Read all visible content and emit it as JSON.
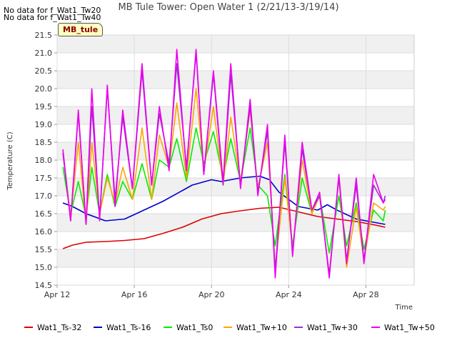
{
  "notes": {
    "nodata_1": "No data for f_Wat1_Tw20",
    "nodata_2": "No data for f_Wat1_Tw40"
  },
  "badge": "MB_tule",
  "chart_data": {
    "type": "line",
    "title": "MB Tule Tower: Open Water 1 (2/21/13-3/19/14)",
    "xlabel": "Time",
    "ylabel": "Temperature (C)",
    "xlim": [
      0,
      18.5
    ],
    "ylim": [
      14.5,
      21.5
    ],
    "x_ticks": [
      {
        "v": 0,
        "label": "Apr 12"
      },
      {
        "v": 4,
        "label": "Apr 16"
      },
      {
        "v": 8,
        "label": "Apr 20"
      },
      {
        "v": 12,
        "label": "Apr 24"
      },
      {
        "v": 16,
        "label": "Apr 28"
      }
    ],
    "y_ticks": [
      14.5,
      15.0,
      15.5,
      16.0,
      16.5,
      17.0,
      17.5,
      18.0,
      18.5,
      19.0,
      19.5,
      20.0,
      20.5,
      21.0,
      21.5
    ],
    "grid": true,
    "legend_position": "bottom",
    "series": [
      {
        "name": "Wat1_Ts-32",
        "color": "#dd0000",
        "x": [
          0.3,
          0.8,
          1.5,
          2.5,
          3.5,
          4.5,
          5.5,
          6.5,
          7.5,
          8.5,
          9.5,
          10.5,
          11.5,
          12.5,
          13.5,
          14.5,
          15.5,
          16.5,
          17.0
        ],
        "y": [
          15.52,
          15.62,
          15.7,
          15.72,
          15.75,
          15.8,
          15.95,
          16.12,
          16.35,
          16.5,
          16.58,
          16.65,
          16.68,
          16.55,
          16.42,
          16.35,
          16.28,
          16.18,
          16.12
        ]
      },
      {
        "name": "Wat1_Ts-16",
        "color": "#0000cc",
        "x": [
          0.3,
          0.8,
          1.5,
          2.5,
          3.5,
          4.5,
          5.5,
          6.5,
          7.0,
          8.0,
          8.5,
          9.5,
          10.5,
          11.0,
          11.5,
          12.5,
          13.5,
          14.0,
          14.5,
          15.5,
          16.5,
          17.0
        ],
        "y": [
          16.8,
          16.7,
          16.5,
          16.3,
          16.35,
          16.6,
          16.85,
          17.15,
          17.3,
          17.45,
          17.4,
          17.5,
          17.55,
          17.45,
          17.1,
          16.7,
          16.6,
          16.75,
          16.6,
          16.35,
          16.25,
          16.2
        ]
      },
      {
        "name": "Wat1_Ts0",
        "color": "#00ee00",
        "x": [
          0.3,
          0.7,
          1.1,
          1.5,
          1.8,
          2.2,
          2.6,
          3.0,
          3.4,
          3.9,
          4.4,
          4.9,
          5.3,
          5.8,
          6.2,
          6.7,
          7.2,
          7.6,
          8.1,
          8.6,
          9.0,
          9.5,
          10.0,
          10.4,
          10.9,
          11.3,
          11.8,
          12.2,
          12.7,
          13.2,
          13.6,
          14.1,
          14.6,
          15.0,
          15.5,
          15.9,
          16.4,
          16.9,
          17.0
        ],
        "y": [
          17.8,
          16.5,
          17.4,
          16.4,
          17.8,
          16.5,
          17.6,
          16.7,
          17.4,
          16.9,
          17.9,
          16.9,
          18.0,
          17.8,
          18.6,
          17.4,
          18.9,
          17.9,
          18.8,
          17.5,
          18.6,
          17.4,
          18.9,
          17.3,
          17.0,
          15.6,
          17.6,
          15.6,
          17.5,
          16.5,
          17.0,
          15.4,
          17.0,
          15.6,
          16.8,
          15.5,
          16.6,
          16.3,
          16.6
        ]
      },
      {
        "name": "Wat1_Tw+10",
        "color": "#ffa500",
        "x": [
          0.3,
          0.7,
          1.1,
          1.5,
          1.8,
          2.2,
          2.6,
          3.0,
          3.4,
          3.9,
          4.4,
          4.9,
          5.3,
          5.8,
          6.2,
          6.7,
          7.2,
          7.6,
          8.1,
          8.6,
          9.0,
          9.5,
          10.0,
          10.4,
          10.9,
          11.3,
          11.8,
          12.2,
          12.7,
          13.2,
          13.6,
          14.1,
          14.6,
          15.0,
          15.5,
          15.9,
          16.4,
          16.9,
          17.0
        ],
        "y": [
          18.2,
          16.4,
          18.5,
          16.2,
          18.5,
          16.5,
          17.5,
          16.8,
          17.8,
          16.9,
          18.9,
          16.9,
          18.7,
          17.8,
          19.6,
          17.5,
          20.0,
          17.7,
          19.5,
          17.3,
          19.2,
          17.4,
          19.4,
          17.2,
          18.5,
          15.0,
          17.5,
          15.5,
          18.0,
          16.5,
          17.0,
          14.8,
          17.5,
          15.0,
          16.7,
          15.2,
          16.8,
          16.6,
          16.7
        ]
      },
      {
        "name": "Wat1_Tw+30",
        "color": "#9933cc",
        "x": [
          0.3,
          0.7,
          1.1,
          1.5,
          1.8,
          2.2,
          2.6,
          3.0,
          3.4,
          3.9,
          4.4,
          4.9,
          5.3,
          5.8,
          6.2,
          6.7,
          7.2,
          7.6,
          8.1,
          8.6,
          9.0,
          9.5,
          10.0,
          10.4,
          10.9,
          11.3,
          11.8,
          12.2,
          12.7,
          13.2,
          13.6,
          14.1,
          14.6,
          15.0,
          15.5,
          15.9,
          16.4,
          16.9,
          17.0
        ],
        "y": [
          18.2,
          16.3,
          19.3,
          16.2,
          19.5,
          16.4,
          20.0,
          16.9,
          19.2,
          17.2,
          20.5,
          17.3,
          19.3,
          17.9,
          20.7,
          17.8,
          21.0,
          17.6,
          20.4,
          17.3,
          20.4,
          17.3,
          19.5,
          17.1,
          18.8,
          14.9,
          18.5,
          15.4,
          18.3,
          16.6,
          17.0,
          14.8,
          17.5,
          15.2,
          17.3,
          15.2,
          17.3,
          16.8,
          17.0
        ]
      },
      {
        "name": "Wat1_Tw+50",
        "color": "#ee00ee",
        "x": [
          0.3,
          0.7,
          1.1,
          1.5,
          1.8,
          2.2,
          2.6,
          3.0,
          3.4,
          3.9,
          4.4,
          4.9,
          5.3,
          5.8,
          6.2,
          6.7,
          7.2,
          7.6,
          8.1,
          8.6,
          9.0,
          9.5,
          10.0,
          10.4,
          10.9,
          11.3,
          11.8,
          12.2,
          12.7,
          13.2,
          13.6,
          14.1,
          14.6,
          15.0,
          15.5,
          15.9,
          16.4,
          16.9,
          17.0
        ],
        "y": [
          18.3,
          16.3,
          19.4,
          16.2,
          20.0,
          16.3,
          20.1,
          16.7,
          19.4,
          17.2,
          20.7,
          17.3,
          19.5,
          17.7,
          21.1,
          17.7,
          21.1,
          17.6,
          20.5,
          17.4,
          20.7,
          17.2,
          19.7,
          17.0,
          19.0,
          14.7,
          18.7,
          15.3,
          18.5,
          16.6,
          17.1,
          14.7,
          17.6,
          15.1,
          17.5,
          15.1,
          17.6,
          16.8,
          16.9
        ]
      }
    ]
  }
}
